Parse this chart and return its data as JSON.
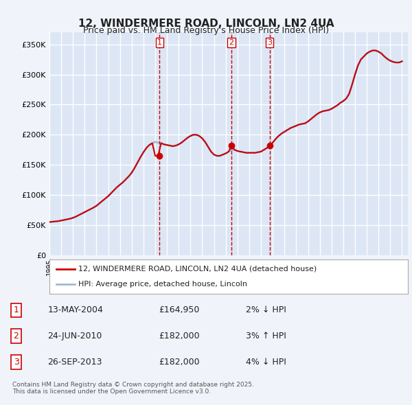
{
  "title": "12, WINDERMERE ROAD, LINCOLN, LN2 4UA",
  "subtitle": "Price paid vs. HM Land Registry's House Price Index (HPI)",
  "ylabel_ticks": [
    "£0",
    "£50K",
    "£100K",
    "£150K",
    "£200K",
    "£250K",
    "£300K",
    "£350K"
  ],
  "ytick_values": [
    0,
    50000,
    100000,
    150000,
    200000,
    250000,
    300000,
    350000
  ],
  "ylim": [
    0,
    370000
  ],
  "xlim_start": 1995.0,
  "xlim_end": 2025.5,
  "background_color": "#f0f4fa",
  "plot_bg_color": "#dce6f5",
  "grid_color": "#ffffff",
  "red_line_color": "#cc0000",
  "blue_line_color": "#a0b8d8",
  "sale_marker_color": "#cc0000",
  "vline_color": "#cc0000",
  "legend_label_red": "12, WINDERMERE ROAD, LINCOLN, LN2 4UA (detached house)",
  "legend_label_blue": "HPI: Average price, detached house, Lincoln",
  "transactions": [
    {
      "id": 1,
      "date": "13-MAY-2004",
      "year": 2004.37,
      "price": 164950,
      "pct": "2%",
      "direction": "↓"
    },
    {
      "id": 2,
      "date": "24-JUN-2010",
      "year": 2010.48,
      "price": 182000,
      "pct": "3%",
      "direction": "↑"
    },
    {
      "id": 3,
      "date": "26-SEP-2013",
      "year": 2013.73,
      "price": 182000,
      "pct": "4%",
      "direction": "↓"
    }
  ],
  "footnote": "Contains HM Land Registry data © Crown copyright and database right 2025.\nThis data is licensed under the Open Government Licence v3.0.",
  "hpi_years": [
    1995.0,
    1995.25,
    1995.5,
    1995.75,
    1996.0,
    1996.25,
    1996.5,
    1996.75,
    1997.0,
    1997.25,
    1997.5,
    1997.75,
    1998.0,
    1998.25,
    1998.5,
    1998.75,
    1999.0,
    1999.25,
    1999.5,
    1999.75,
    2000.0,
    2000.25,
    2000.5,
    2000.75,
    2001.0,
    2001.25,
    2001.5,
    2001.75,
    2002.0,
    2002.25,
    2002.5,
    2002.75,
    2003.0,
    2003.25,
    2003.5,
    2003.75,
    2004.0,
    2004.25,
    2004.5,
    2004.75,
    2005.0,
    2005.25,
    2005.5,
    2005.75,
    2006.0,
    2006.25,
    2006.5,
    2006.75,
    2007.0,
    2007.25,
    2007.5,
    2007.75,
    2008.0,
    2008.25,
    2008.5,
    2008.75,
    2009.0,
    2009.25,
    2009.5,
    2009.75,
    2010.0,
    2010.25,
    2010.5,
    2010.75,
    2011.0,
    2011.25,
    2011.5,
    2011.75,
    2012.0,
    2012.25,
    2012.5,
    2012.75,
    2013.0,
    2013.25,
    2013.5,
    2013.75,
    2014.0,
    2014.25,
    2014.5,
    2014.75,
    2015.0,
    2015.25,
    2015.5,
    2015.75,
    2016.0,
    2016.25,
    2016.5,
    2016.75,
    2017.0,
    2017.25,
    2017.5,
    2017.75,
    2018.0,
    2018.25,
    2018.5,
    2018.75,
    2019.0,
    2019.25,
    2019.5,
    2019.75,
    2020.0,
    2020.25,
    2020.5,
    2020.75,
    2021.0,
    2021.25,
    2021.5,
    2021.75,
    2022.0,
    2022.25,
    2022.5,
    2022.75,
    2023.0,
    2023.25,
    2023.5,
    2023.75,
    2024.0,
    2024.25,
    2024.5,
    2024.75,
    2025.0
  ],
  "hpi_values": [
    55000,
    55500,
    56000,
    56500,
    57500,
    58500,
    59500,
    60500,
    62000,
    64000,
    66500,
    69000,
    71500,
    74000,
    76500,
    79000,
    82000,
    86000,
    90000,
    94000,
    98000,
    103000,
    108000,
    113000,
    117000,
    121000,
    126000,
    131000,
    137000,
    145000,
    154000,
    163000,
    171000,
    178000,
    183000,
    186000,
    188000,
    187000,
    186000,
    184000,
    183000,
    182000,
    181000,
    182000,
    184000,
    187000,
    191000,
    195000,
    198000,
    200000,
    200000,
    198000,
    194000,
    188000,
    180000,
    172000,
    167000,
    165000,
    165000,
    167000,
    169000,
    172000,
    175000,
    175000,
    173000,
    172000,
    171000,
    170000,
    170000,
    170000,
    170000,
    171000,
    172000,
    175000,
    178000,
    182000,
    187000,
    193000,
    198000,
    202000,
    205000,
    208000,
    211000,
    213000,
    215000,
    217000,
    218000,
    219000,
    222000,
    226000,
    230000,
    234000,
    237000,
    239000,
    240000,
    241000,
    243000,
    246000,
    249000,
    253000,
    256000,
    260000,
    268000,
    283000,
    300000,
    315000,
    325000,
    330000,
    335000,
    338000,
    340000,
    340000,
    338000,
    335000,
    330000,
    326000,
    323000,
    321000,
    320000,
    320000,
    322000
  ],
  "red_years": [
    1995.0,
    1995.25,
    1995.5,
    1995.75,
    1996.0,
    1996.25,
    1996.5,
    1996.75,
    1997.0,
    1997.25,
    1997.5,
    1997.75,
    1998.0,
    1998.25,
    1998.5,
    1998.75,
    1999.0,
    1999.25,
    1999.5,
    1999.75,
    2000.0,
    2000.25,
    2000.5,
    2000.75,
    2001.0,
    2001.25,
    2001.5,
    2001.75,
    2002.0,
    2002.25,
    2002.5,
    2002.75,
    2003.0,
    2003.25,
    2003.5,
    2003.75,
    2004.0,
    2004.25,
    2004.5,
    2004.75,
    2005.0,
    2005.25,
    2005.5,
    2005.75,
    2006.0,
    2006.25,
    2006.5,
    2006.75,
    2007.0,
    2007.25,
    2007.5,
    2007.75,
    2008.0,
    2008.25,
    2008.5,
    2008.75,
    2009.0,
    2009.25,
    2009.5,
    2009.75,
    2010.0,
    2010.25,
    2010.5,
    2010.75,
    2011.0,
    2011.25,
    2011.5,
    2011.75,
    2012.0,
    2012.25,
    2012.5,
    2012.75,
    2013.0,
    2013.25,
    2013.5,
    2013.75,
    2014.0,
    2014.25,
    2014.5,
    2014.75,
    2015.0,
    2015.25,
    2015.5,
    2015.75,
    2016.0,
    2016.25,
    2016.5,
    2016.75,
    2017.0,
    2017.25,
    2017.5,
    2017.75,
    2018.0,
    2018.25,
    2018.5,
    2018.75,
    2019.0,
    2019.25,
    2019.5,
    2019.75,
    2020.0,
    2020.25,
    2020.5,
    2020.75,
    2021.0,
    2021.25,
    2021.5,
    2021.75,
    2022.0,
    2022.25,
    2022.5,
    2022.75,
    2023.0,
    2023.25,
    2023.5,
    2023.75,
    2024.0,
    2024.25,
    2024.5,
    2024.75,
    2025.0
  ],
  "red_values": [
    55000,
    55500,
    56000,
    56500,
    57500,
    58500,
    59500,
    60500,
    62000,
    64000,
    66500,
    69000,
    71500,
    74000,
    76500,
    79000,
    82000,
    86000,
    90000,
    94000,
    98000,
    103000,
    108000,
    113000,
    117000,
    121000,
    126000,
    131000,
    137000,
    145000,
    154000,
    163000,
    171000,
    178000,
    183000,
    186000,
    164950,
    164950,
    186000,
    184000,
    183000,
    182000,
    181000,
    182000,
    184000,
    187000,
    191000,
    195000,
    198000,
    200000,
    200000,
    198000,
    194000,
    188000,
    180000,
    172000,
    167000,
    165000,
    165000,
    167000,
    169000,
    172000,
    182000,
    175000,
    173000,
    172000,
    171000,
    170000,
    170000,
    170000,
    170000,
    171000,
    172000,
    175000,
    178000,
    182000,
    187000,
    193000,
    198000,
    202000,
    205000,
    208000,
    211000,
    213000,
    215000,
    217000,
    218000,
    219000,
    222000,
    226000,
    230000,
    234000,
    237000,
    239000,
    240000,
    241000,
    243000,
    246000,
    249000,
    253000,
    256000,
    260000,
    268000,
    283000,
    300000,
    315000,
    325000,
    330000,
    335000,
    338000,
    340000,
    340000,
    338000,
    335000,
    330000,
    326000,
    323000,
    321000,
    320000,
    320000,
    322000
  ]
}
